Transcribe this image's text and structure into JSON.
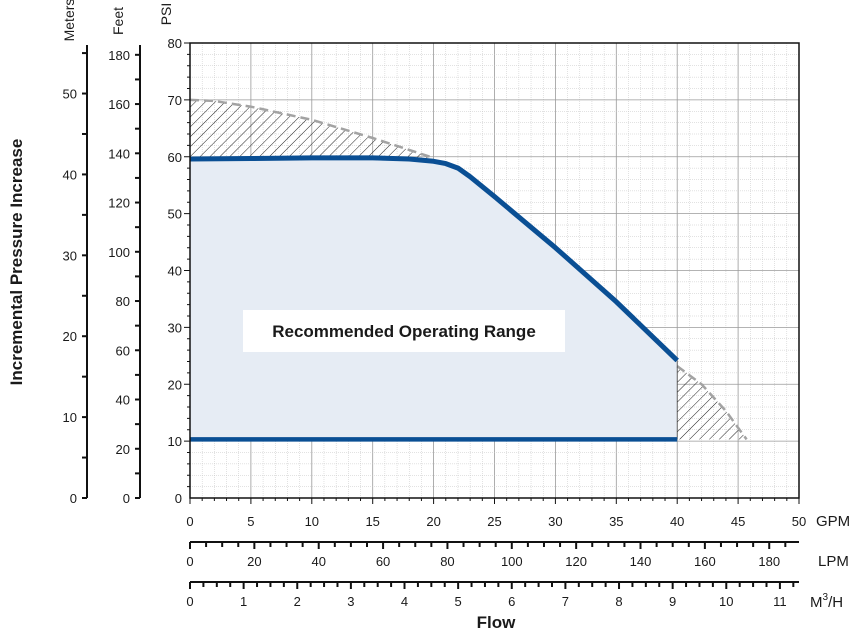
{
  "chart_data": {
    "type": "line",
    "xlabel": "Flow",
    "ylabel": "Incremental Pressure Increase",
    "series": [
      {
        "x": [
          0,
          5,
          10,
          15,
          18,
          20,
          21,
          22,
          23,
          25,
          30,
          35,
          40
        ],
        "y": [
          59.6,
          59.7,
          59.8,
          59.8,
          59.6,
          59.2,
          58.8,
          58.0,
          56.5,
          53.0,
          44.0,
          34.5,
          24.2
        ]
      },
      {
        "x": [
          0,
          40
        ],
        "y": [
          10.3,
          10.3
        ]
      }
    ],
    "max_pressure_curve": {
      "x": [
        0,
        2,
        5,
        10,
        15,
        20
      ],
      "y": [
        70,
        69.8,
        68.8,
        66.5,
        63.3,
        59.8
      ]
    },
    "runout_curve": {
      "x": [
        40,
        42,
        44,
        45.7
      ],
      "y": [
        23.2,
        20.0,
        15.3,
        10.3
      ]
    },
    "annotation": "Recommended Operating Range",
    "primary_x_axis": {
      "unit": "GPM",
      "ticks": [
        "0",
        "5",
        "10",
        "15",
        "20",
        "25",
        "30",
        "35",
        "40",
        "45",
        "50"
      ],
      "range": [
        0,
        50
      ]
    },
    "lpm_axis": {
      "unit": "LPM",
      "ticks": [
        "0",
        "20",
        "40",
        "60",
        "80",
        "100",
        "120",
        "140",
        "160",
        "180"
      ]
    },
    "m3h_axis": {
      "unit_main": "M",
      "unit_sup": "3",
      "unit_tail": "/H",
      "ticks": [
        "0",
        "1",
        "2",
        "3",
        "4",
        "5",
        "6",
        "7",
        "8",
        "9",
        "10",
        "11"
      ]
    },
    "psi_axis": {
      "unit": "PSI",
      "ticks": [
        "0",
        "10",
        "20",
        "30",
        "40",
        "50",
        "60",
        "70",
        "80"
      ],
      "range": [
        0,
        80
      ]
    },
    "feet_axis": {
      "unit": "Feet",
      "ticks": [
        "0",
        "20",
        "40",
        "60",
        "80",
        "100",
        "120",
        "140",
        "160",
        "180"
      ]
    },
    "meters_axis": {
      "unit": "Meters",
      "ticks": [
        "0",
        "10",
        "20",
        "30",
        "40",
        "50"
      ]
    },
    "grid": true,
    "colors": {
      "curve": "#0a4f94",
      "fill": "#e6ecf4",
      "dashed": "#a3a3a3",
      "hatch": "#222222"
    }
  }
}
